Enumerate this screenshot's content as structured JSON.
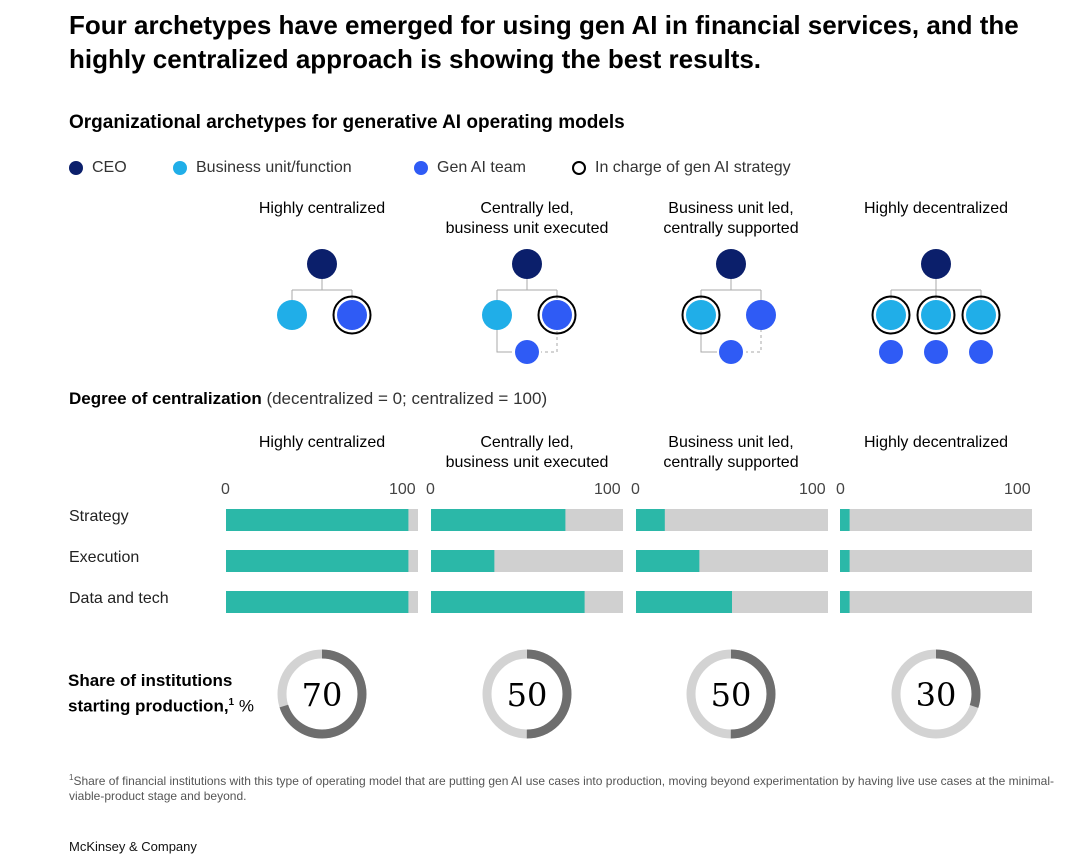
{
  "title": "Four archetypes have emerged for using gen AI in financial services, and the highly centralized approach is showing the best results.",
  "subtitle": "Organizational archetypes for generative AI operating models",
  "legend": [
    {
      "label": "CEO",
      "color": "#0b1f6b",
      "style": "fill"
    },
    {
      "label": "Business unit/function",
      "color": "#20aee8",
      "style": "fill"
    },
    {
      "label": "Gen AI team",
      "color": "#2f5bf5",
      "style": "fill"
    },
    {
      "label": "In charge of gen AI strategy",
      "color": "#000000",
      "style": "ring"
    }
  ],
  "archetypes": [
    {
      "line1": "",
      "line2": "Highly centralized"
    },
    {
      "line1": "Centrally led,",
      "line2": "business unit executed"
    },
    {
      "line1": "Business unit led,",
      "line2": "centrally supported"
    },
    {
      "line1": "",
      "line2": "Highly decentralized"
    }
  ],
  "centralization": {
    "heading_bold": "Degree of centralization",
    "heading_rest": " (decentralized = 0; centralized = 100)",
    "tick_min": "0",
    "tick_max": "100",
    "row_labels": [
      "Strategy",
      "Execution",
      "Data and tech"
    ]
  },
  "share": {
    "label_main": "Share of institutions starting production,",
    "label_sup": "1",
    "label_unit": " %"
  },
  "footnote": {
    "sup": "1",
    "text": "Share of financial institutions with this type of operating model that are putting gen AI use cases into production, moving beyond experimentation by having live use cases at the minimal-viable-product stage and beyond."
  },
  "brand": "McKinsey & Company",
  "colors": {
    "ceo": "#0b1f6b",
    "business_unit": "#20aee8",
    "gen_ai_team": "#2f5bf5",
    "bar_fill": "#2bb8a8",
    "bar_track": "#d0d0d0",
    "donut_fill": "#6e6e6e",
    "donut_track": "#d3d3d3",
    "connector": "#aaaaaa"
  },
  "chart_data": [
    {
      "type": "bar",
      "title": "Degree of centralization",
      "xlabel": "decentralized = 0; centralized = 100",
      "xlim": [
        0,
        100
      ],
      "categories": [
        "Strategy",
        "Execution",
        "Data and tech"
      ],
      "series": [
        {
          "name": "Highly centralized",
          "values": [
            95,
            95,
            95
          ]
        },
        {
          "name": "Centrally led, business unit executed",
          "values": [
            70,
            33,
            80
          ]
        },
        {
          "name": "Business unit led, centrally supported",
          "values": [
            15,
            33,
            50
          ]
        },
        {
          "name": "Highly decentralized",
          "values": [
            5,
            5,
            5
          ]
        }
      ]
    },
    {
      "type": "pie",
      "title": "Share of institutions starting production, %",
      "categories": [
        "Highly centralized",
        "Centrally led, business unit executed",
        "Business unit led, centrally supported",
        "Highly decentralized"
      ],
      "values": [
        70,
        50,
        50,
        30
      ]
    }
  ]
}
